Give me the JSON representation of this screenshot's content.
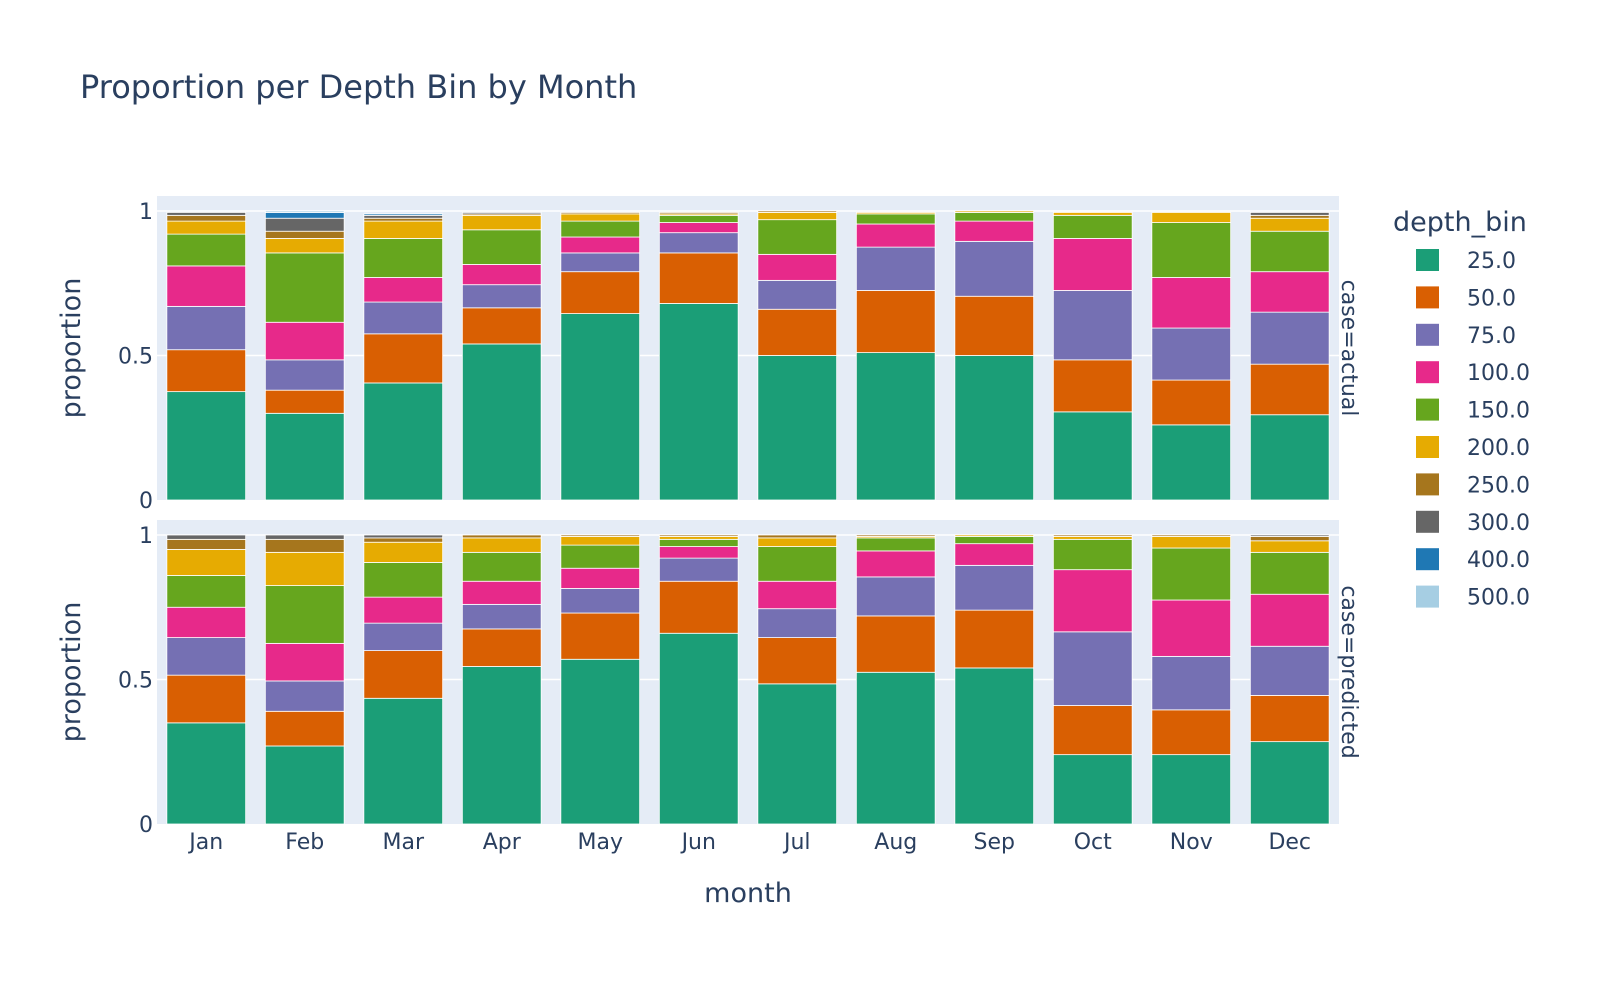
{
  "chart_data": {
    "type": "bar",
    "barmode": "stack",
    "title": "Proportion per Depth Bin by Month",
    "xlabel": "month",
    "ylabel": "proportion",
    "ylim": [
      0,
      1
    ],
    "yticks": [
      "0",
      "0.5",
      "1"
    ],
    "legend_title": "depth_bin",
    "legend_position": "right",
    "categories": [
      "Jan",
      "Feb",
      "Mar",
      "Apr",
      "May",
      "Jun",
      "Jul",
      "Aug",
      "Sep",
      "Oct",
      "Nov",
      "Dec"
    ],
    "bins": [
      {
        "name": "25.0",
        "color": "#1b9e77"
      },
      {
        "name": "50.0",
        "color": "#d95f02"
      },
      {
        "name": "75.0",
        "color": "#7570b3"
      },
      {
        "name": "100.0",
        "color": "#e7298a"
      },
      {
        "name": "150.0",
        "color": "#66a61e"
      },
      {
        "name": "200.0",
        "color": "#e6ab02"
      },
      {
        "name": "250.0",
        "color": "#a6761d"
      },
      {
        "name": "300.0",
        "color": "#666666"
      },
      {
        "name": "400.0",
        "color": "#1f78b4"
      },
      {
        "name": "500.0",
        "color": "#a6cee3"
      }
    ],
    "facets": [
      {
        "label": "case=actual",
        "series": [
          {
            "name": "25.0",
            "values": [
              0.375,
              0.3,
              0.405,
              0.54,
              0.645,
              0.68,
              0.5,
              0.51,
              0.5,
              0.305,
              0.26,
              0.295
            ]
          },
          {
            "name": "50.0",
            "values": [
              0.145,
              0.08,
              0.17,
              0.125,
              0.145,
              0.175,
              0.16,
              0.215,
              0.205,
              0.18,
              0.155,
              0.175
            ]
          },
          {
            "name": "75.0",
            "values": [
              0.15,
              0.105,
              0.11,
              0.08,
              0.065,
              0.07,
              0.1,
              0.15,
              0.19,
              0.24,
              0.18,
              0.18
            ]
          },
          {
            "name": "100.0",
            "values": [
              0.14,
              0.13,
              0.085,
              0.07,
              0.055,
              0.035,
              0.09,
              0.08,
              0.07,
              0.18,
              0.175,
              0.14
            ]
          },
          {
            "name": "150.0",
            "values": [
              0.11,
              0.24,
              0.135,
              0.12,
              0.055,
              0.025,
              0.12,
              0.035,
              0.03,
              0.08,
              0.19,
              0.14
            ]
          },
          {
            "name": "200.0",
            "values": [
              0.045,
              0.05,
              0.06,
              0.05,
              0.025,
              0.005,
              0.025,
              0.005,
              0.005,
              0.01,
              0.035,
              0.045
            ]
          },
          {
            "name": "250.0",
            "values": [
              0.02,
              0.025,
              0.01,
              0.005,
              0.005,
              0.005,
              0.005,
              0.0,
              0.0,
              0.0,
              0.0,
              0.01
            ]
          },
          {
            "name": "300.0",
            "values": [
              0.01,
              0.045,
              0.01,
              0.005,
              0.0,
              0.0,
              0.0,
              0.0,
              0.0,
              0.0,
              0.0,
              0.01
            ]
          },
          {
            "name": "400.0",
            "values": [
              0.0,
              0.02,
              0.005,
              0.0,
              0.0,
              0.0,
              0.0,
              0.0,
              0.0,
              0.0,
              0.0,
              0.0
            ]
          },
          {
            "name": "500.0",
            "values": [
              0.0,
              0.005,
              0.0,
              0.0,
              0.0,
              0.0,
              0.0,
              0.0,
              0.0,
              0.0,
              0.0,
              0.0
            ]
          }
        ]
      },
      {
        "label": "case=predicted",
        "series": [
          {
            "name": "25.0",
            "values": [
              0.35,
              0.27,
              0.435,
              0.545,
              0.57,
              0.66,
              0.485,
              0.525,
              0.54,
              0.24,
              0.24,
              0.285
            ]
          },
          {
            "name": "50.0",
            "values": [
              0.165,
              0.12,
              0.165,
              0.13,
              0.16,
              0.18,
              0.16,
              0.195,
              0.2,
              0.17,
              0.155,
              0.16
            ]
          },
          {
            "name": "75.0",
            "values": [
              0.13,
              0.105,
              0.095,
              0.085,
              0.085,
              0.08,
              0.1,
              0.135,
              0.155,
              0.255,
              0.185,
              0.17
            ]
          },
          {
            "name": "100.0",
            "values": [
              0.105,
              0.13,
              0.09,
              0.08,
              0.07,
              0.04,
              0.095,
              0.09,
              0.075,
              0.215,
              0.195,
              0.18
            ]
          },
          {
            "name": "150.0",
            "values": [
              0.11,
              0.2,
              0.12,
              0.1,
              0.08,
              0.025,
              0.12,
              0.045,
              0.025,
              0.105,
              0.18,
              0.145
            ]
          },
          {
            "name": "200.0",
            "values": [
              0.09,
              0.115,
              0.07,
              0.05,
              0.03,
              0.01,
              0.03,
              0.005,
              0.005,
              0.01,
              0.04,
              0.04
            ]
          },
          {
            "name": "250.0",
            "values": [
              0.035,
              0.045,
              0.015,
              0.01,
              0.005,
              0.005,
              0.01,
              0.005,
              0.0,
              0.005,
              0.005,
              0.015
            ]
          },
          {
            "name": "300.0",
            "values": [
              0.015,
              0.015,
              0.01,
              0.0,
              0.0,
              0.0,
              0.0,
              0.0,
              0.0,
              0.0,
              0.0,
              0.005
            ]
          },
          {
            "name": "400.0",
            "values": [
              0.0,
              0.0,
              0.0,
              0.0,
              0.0,
              0.0,
              0.0,
              0.0,
              0.0,
              0.0,
              0.0,
              0.0
            ]
          },
          {
            "name": "500.0",
            "values": [
              0.0,
              0.0,
              0.0,
              0.0,
              0.0,
              0.0,
              0.0,
              0.0,
              0.0,
              0.0,
              0.0,
              0.0
            ]
          }
        ]
      }
    ]
  }
}
